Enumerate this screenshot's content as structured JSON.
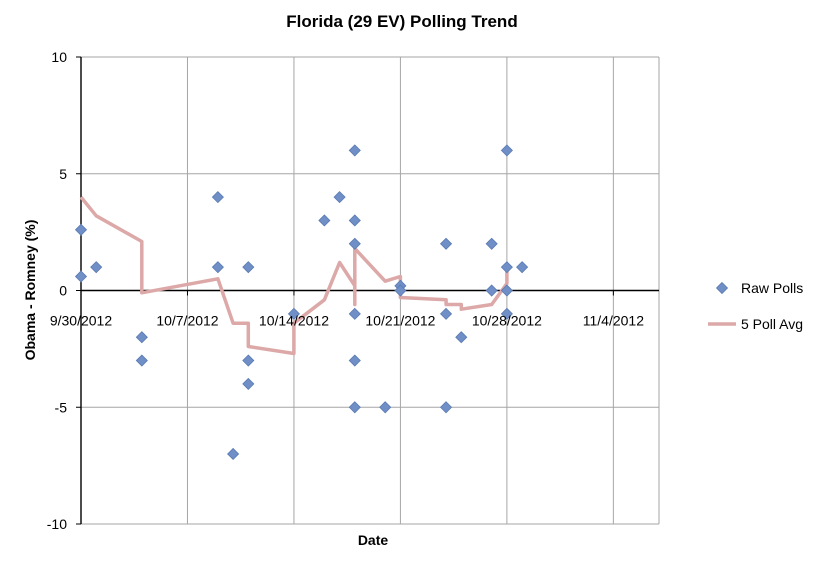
{
  "chart_data": {
    "type": "scatter",
    "title": "Florida (29 EV) Polling Trend",
    "xlabel": "Date",
    "ylabel": "Obama - Romney (%)",
    "x_ticks": [
      "9/30/2012",
      "10/7/2012",
      "10/14/2012",
      "10/21/2012",
      "10/28/2012",
      "11/4/2012"
    ],
    "xlim": [
      "2012-09-30",
      "2012-11-07"
    ],
    "ylim": [
      -10,
      10
    ],
    "y_ticks": [
      10,
      5,
      0,
      -5,
      -10
    ],
    "grid": true,
    "legend_position": "right",
    "series": [
      {
        "name": "Raw Polls",
        "kind": "scatter",
        "marker": "diamond",
        "color": "#6f8fc6",
        "points": [
          {
            "x": "2012-09-30",
            "y": 2.6
          },
          {
            "x": "2012-09-30",
            "y": 0.6
          },
          {
            "x": "2012-10-01",
            "y": 1
          },
          {
            "x": "2012-10-04",
            "y": -2
          },
          {
            "x": "2012-10-04",
            "y": -3
          },
          {
            "x": "2012-10-09",
            "y": 4
          },
          {
            "x": "2012-10-09",
            "y": 1
          },
          {
            "x": "2012-10-10",
            "y": -7
          },
          {
            "x": "2012-10-11",
            "y": 1
          },
          {
            "x": "2012-10-11",
            "y": -3
          },
          {
            "x": "2012-10-11",
            "y": -4
          },
          {
            "x": "2012-10-14",
            "y": -1
          },
          {
            "x": "2012-10-16",
            "y": 3
          },
          {
            "x": "2012-10-17",
            "y": 4
          },
          {
            "x": "2012-10-18",
            "y": 6
          },
          {
            "x": "2012-10-18",
            "y": 3
          },
          {
            "x": "2012-10-18",
            "y": 2
          },
          {
            "x": "2012-10-18",
            "y": -1
          },
          {
            "x": "2012-10-18",
            "y": -3
          },
          {
            "x": "2012-10-18",
            "y": -5
          },
          {
            "x": "2012-10-20",
            "y": -5
          },
          {
            "x": "2012-10-21",
            "y": 0.2
          },
          {
            "x": "2012-10-21",
            "y": 0
          },
          {
            "x": "2012-10-24",
            "y": 2
          },
          {
            "x": "2012-10-24",
            "y": -1
          },
          {
            "x": "2012-10-24",
            "y": -5
          },
          {
            "x": "2012-10-25",
            "y": -2
          },
          {
            "x": "2012-10-27",
            "y": 2
          },
          {
            "x": "2012-10-27",
            "y": 0
          },
          {
            "x": "2012-10-28",
            "y": 6
          },
          {
            "x": "2012-10-28",
            "y": 1
          },
          {
            "x": "2012-10-28",
            "y": 0
          },
          {
            "x": "2012-10-28",
            "y": -1
          },
          {
            "x": "2012-10-29",
            "y": 1
          }
        ]
      },
      {
        "name": "5 Poll Avg",
        "kind": "line",
        "color": "#dca8a8",
        "points": [
          {
            "x": "2012-09-30",
            "y": 4.0
          },
          {
            "x": "2012-10-01",
            "y": 3.2
          },
          {
            "x": "2012-10-04",
            "y": 2.1
          },
          {
            "x": "2012-10-04",
            "y": -0.1
          },
          {
            "x": "2012-10-09",
            "y": 0.5
          },
          {
            "x": "2012-10-10",
            "y": -1.4
          },
          {
            "x": "2012-10-11",
            "y": -1.4
          },
          {
            "x": "2012-10-11",
            "y": -2.4
          },
          {
            "x": "2012-10-14",
            "y": -2.7
          },
          {
            "x": "2012-10-14",
            "y": -1.4
          },
          {
            "x": "2012-10-16",
            "y": -0.4
          },
          {
            "x": "2012-10-17",
            "y": 1.2
          },
          {
            "x": "2012-10-18",
            "y": 0.2
          },
          {
            "x": "2012-10-18",
            "y": -0.6
          },
          {
            "x": "2012-10-18",
            "y": 1.8
          },
          {
            "x": "2012-10-20",
            "y": 0.4
          },
          {
            "x": "2012-10-21",
            "y": 0.6
          },
          {
            "x": "2012-10-21",
            "y": -0.3
          },
          {
            "x": "2012-10-24",
            "y": -0.4
          },
          {
            "x": "2012-10-24",
            "y": -0.6
          },
          {
            "x": "2012-10-25",
            "y": -0.6
          },
          {
            "x": "2012-10-25",
            "y": -0.8
          },
          {
            "x": "2012-10-27",
            "y": -0.6
          },
          {
            "x": "2012-10-28",
            "y": 0.3
          },
          {
            "x": "2012-10-28",
            "y": 1.0
          }
        ]
      }
    ]
  }
}
